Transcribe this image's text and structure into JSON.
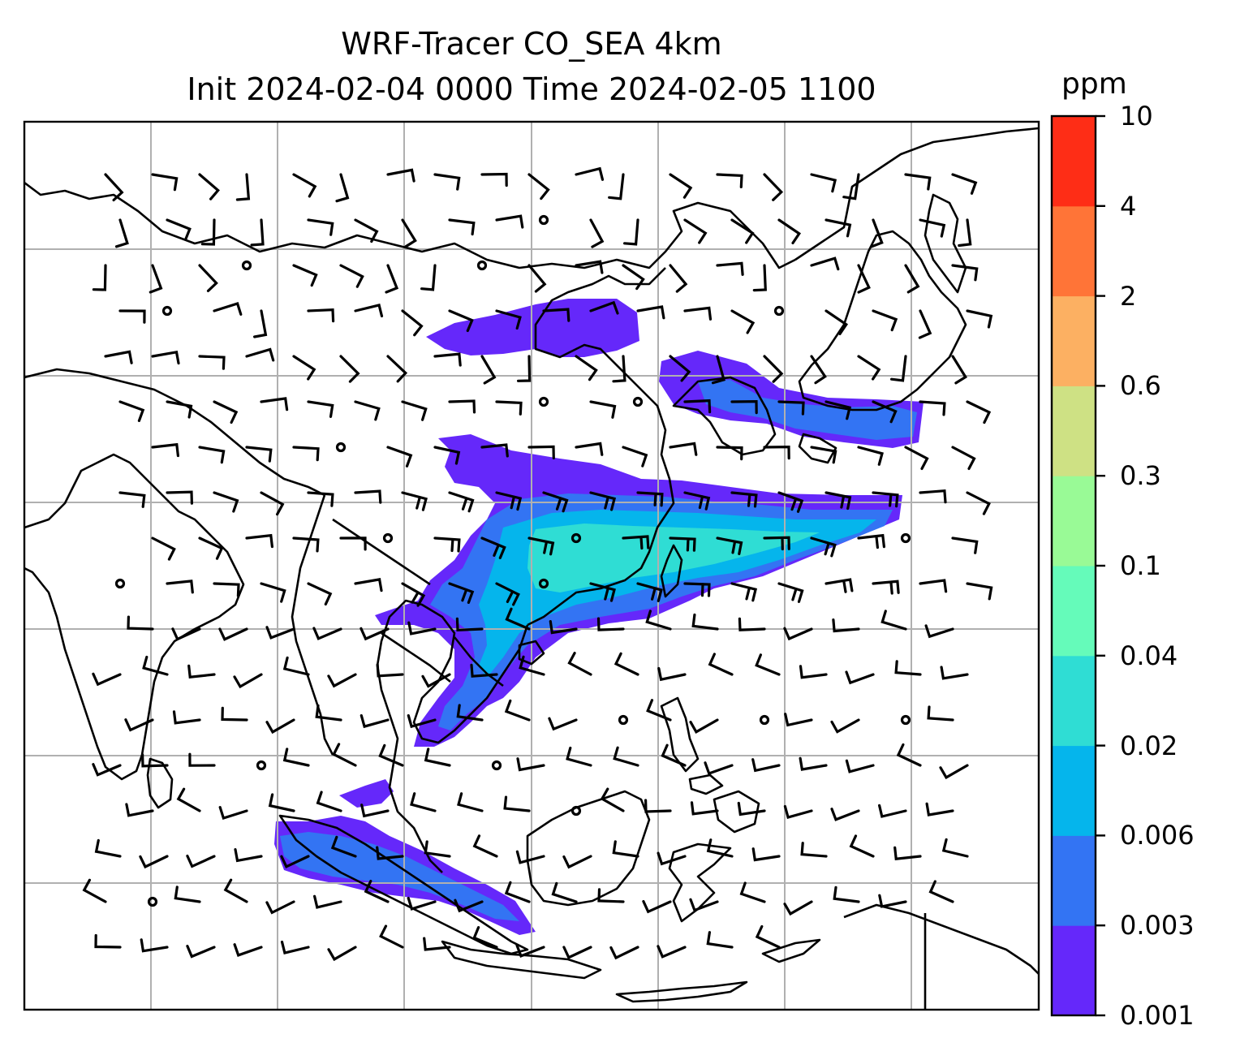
{
  "title": {
    "line1": "WRF-Tracer CO_SEA 4km",
    "line2": "Init 2024-02-04 0000 Time 2024-02-05 1100"
  },
  "colorbar": {
    "unit": "ppm",
    "levels": [
      {
        "label": "0.001",
        "color": "#6528fa"
      },
      {
        "label": "0.003",
        "color": "#3374f3"
      },
      {
        "label": "0.006",
        "color": "#05b5ec"
      },
      {
        "label": "0.02",
        "color": "#2fddd4"
      },
      {
        "label": "0.04",
        "color": "#65fbba"
      },
      {
        "label": "0.1",
        "color": "#99fa96"
      },
      {
        "label": "0.3",
        "color": "#cee184"
      },
      {
        "label": "0.6",
        "color": "#fcb062"
      },
      {
        "label": "2",
        "color": "#ff7437"
      },
      {
        "label": "4",
        "color": "#fe2d16"
      },
      {
        "label": "10",
        "color": null
      }
    ]
  },
  "map": {
    "gridlines": true,
    "coastline_color": "#000000",
    "grid_color": "#b0b0b0"
  }
}
